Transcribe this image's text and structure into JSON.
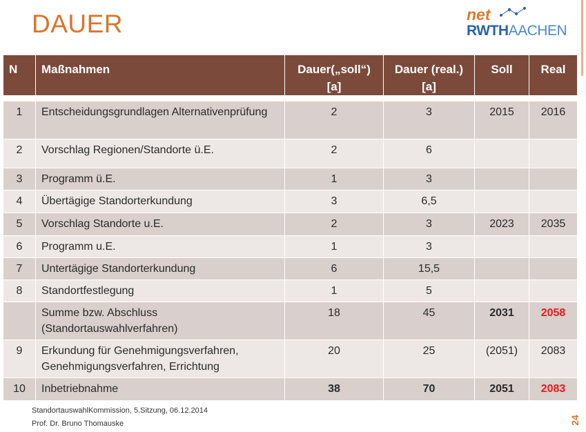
{
  "slide": {
    "title": "DAUER",
    "logo": {
      "net_text": "net",
      "rwth_text": "RWTH",
      "aachen_text": "AACHEN"
    },
    "page_number": "24",
    "footer_line1": "StandortauswahlKommission, 5.Sitzung, 06.12.2014",
    "footer_line2": "Prof. Dr. Bruno Thomauske"
  },
  "colors": {
    "title": "#d9742c",
    "header_bg": "#7b4a3a",
    "row_dark": "#d9cfcc",
    "row_light": "#ede8e6",
    "highlight_red": "#e01b1b"
  },
  "table": {
    "headers": {
      "n": "N",
      "massnahmen": "Maßnahmen",
      "dauer_soll": "Dauer(„soll“) [a]",
      "dauer_real": "Dauer (real.) [a]",
      "soll": "Soll",
      "real": "Real"
    },
    "rows": [
      {
        "n": "1",
        "massnahme": "Entscheidungsgrundlagen Alternativenprüfung",
        "dauer_soll": "2",
        "dauer_real": "3",
        "soll": "2015",
        "real": "2016"
      },
      {
        "n": "2",
        "massnahme": "Vorschlag Regionen/Standorte ü.E.",
        "dauer_soll": "2",
        "dauer_real": "6",
        "soll": "",
        "real": ""
      },
      {
        "n": "3",
        "massnahme": "Programm ü.E.",
        "dauer_soll": "1",
        "dauer_real": "3",
        "soll": "",
        "real": ""
      },
      {
        "n": "4",
        "massnahme": "Übertägige Standorterkundung",
        "dauer_soll": "3",
        "dauer_real": "6,5",
        "soll": "",
        "real": ""
      },
      {
        "n": "5",
        "massnahme": "Vorschlag Standorte u.E.",
        "dauer_soll": "2",
        "dauer_real": "3",
        "soll": "2023",
        "real": "2035"
      },
      {
        "n": "6",
        "massnahme": "Programm u.E.",
        "dauer_soll": "1",
        "dauer_real": "3",
        "soll": "",
        "real": ""
      },
      {
        "n": "7",
        "massnahme": "Untertägige Standorterkundung",
        "dauer_soll": "6",
        "dauer_real": "15,5",
        "soll": "",
        "real": ""
      },
      {
        "n": "8",
        "massnahme": "Standortfestlegung",
        "dauer_soll": "1",
        "dauer_real": "5",
        "soll": "",
        "real": ""
      },
      {
        "n": "",
        "massnahme": "Summe bzw. Abschluss (Standortauswahlverfahren)",
        "dauer_soll": "18",
        "dauer_real": "45",
        "soll": "2031",
        "real": "2058"
      },
      {
        "n": "9",
        "massnahme": "Erkundung für Genehmigungsverfahren, Genehmigungsverfahren, Errichtung",
        "dauer_soll": "20",
        "dauer_real": "25",
        "soll": "(2051)",
        "real": "2083"
      },
      {
        "n": "10",
        "massnahme": "Inbetriebnahme",
        "dauer_soll": "38",
        "dauer_real": "70",
        "soll": "2051",
        "real": "2083"
      }
    ]
  }
}
